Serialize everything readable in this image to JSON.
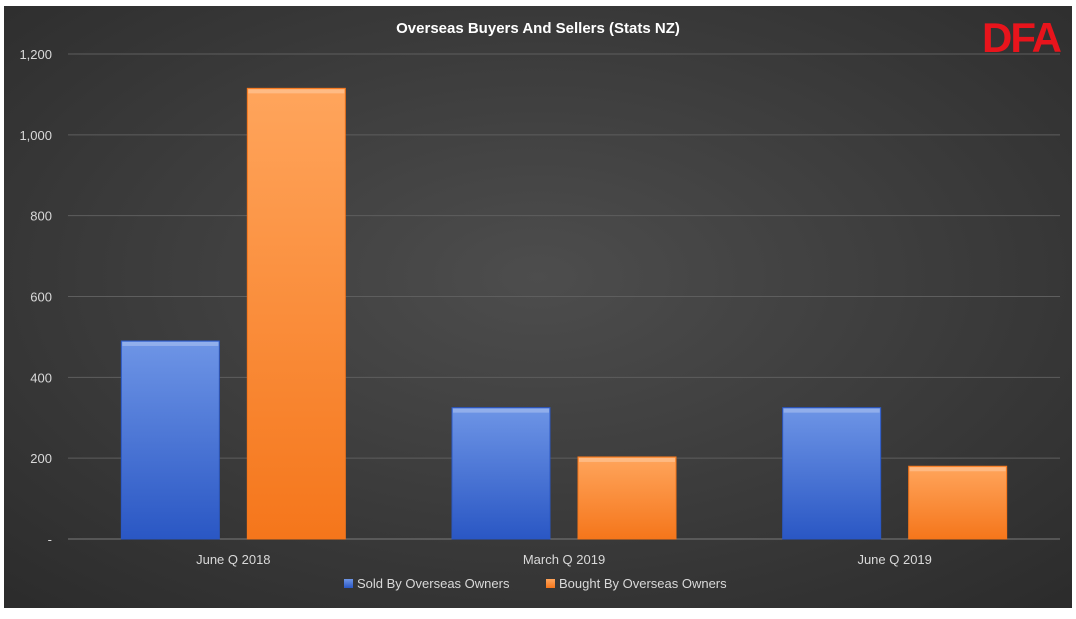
{
  "brand": {
    "logo_text": "DFA",
    "logo_color": "#e8141c"
  },
  "colors": {
    "background_center": "#4d4d4d",
    "background_edge": "#2b2b2b",
    "gridline": "#5e5e5e",
    "text": "#d9d9d9",
    "title_text": "#ffffff"
  },
  "chart_data": {
    "type": "bar",
    "title": "Overseas Buyers And Sellers (Stats NZ)",
    "xlabel": "",
    "ylabel": "",
    "categories": [
      "June Q 2018",
      "March Q 2019",
      "June Q 2019"
    ],
    "series": [
      {
        "name": "Sold By Overseas Owners",
        "values": [
          490,
          325,
          325
        ],
        "color_top": "#6e95e6",
        "color_bottom": "#2a57c4"
      },
      {
        "name": "Bought By Overseas Owners",
        "values": [
          1115,
          203,
          180
        ],
        "color_top": "#ffa55c",
        "color_bottom": "#f5761b"
      }
    ],
    "ylim": [
      0,
      1200
    ],
    "y_ticks": [
      {
        "value": 0,
        "label": "-"
      },
      {
        "value": 200,
        "label": "200"
      },
      {
        "value": 400,
        "label": "400"
      },
      {
        "value": 600,
        "label": "600"
      },
      {
        "value": 800,
        "label": "800"
      },
      {
        "value": 1000,
        "label": "1,000"
      },
      {
        "value": 1200,
        "label": "1,200"
      }
    ],
    "grid": true,
    "legend_position": "bottom-center"
  }
}
